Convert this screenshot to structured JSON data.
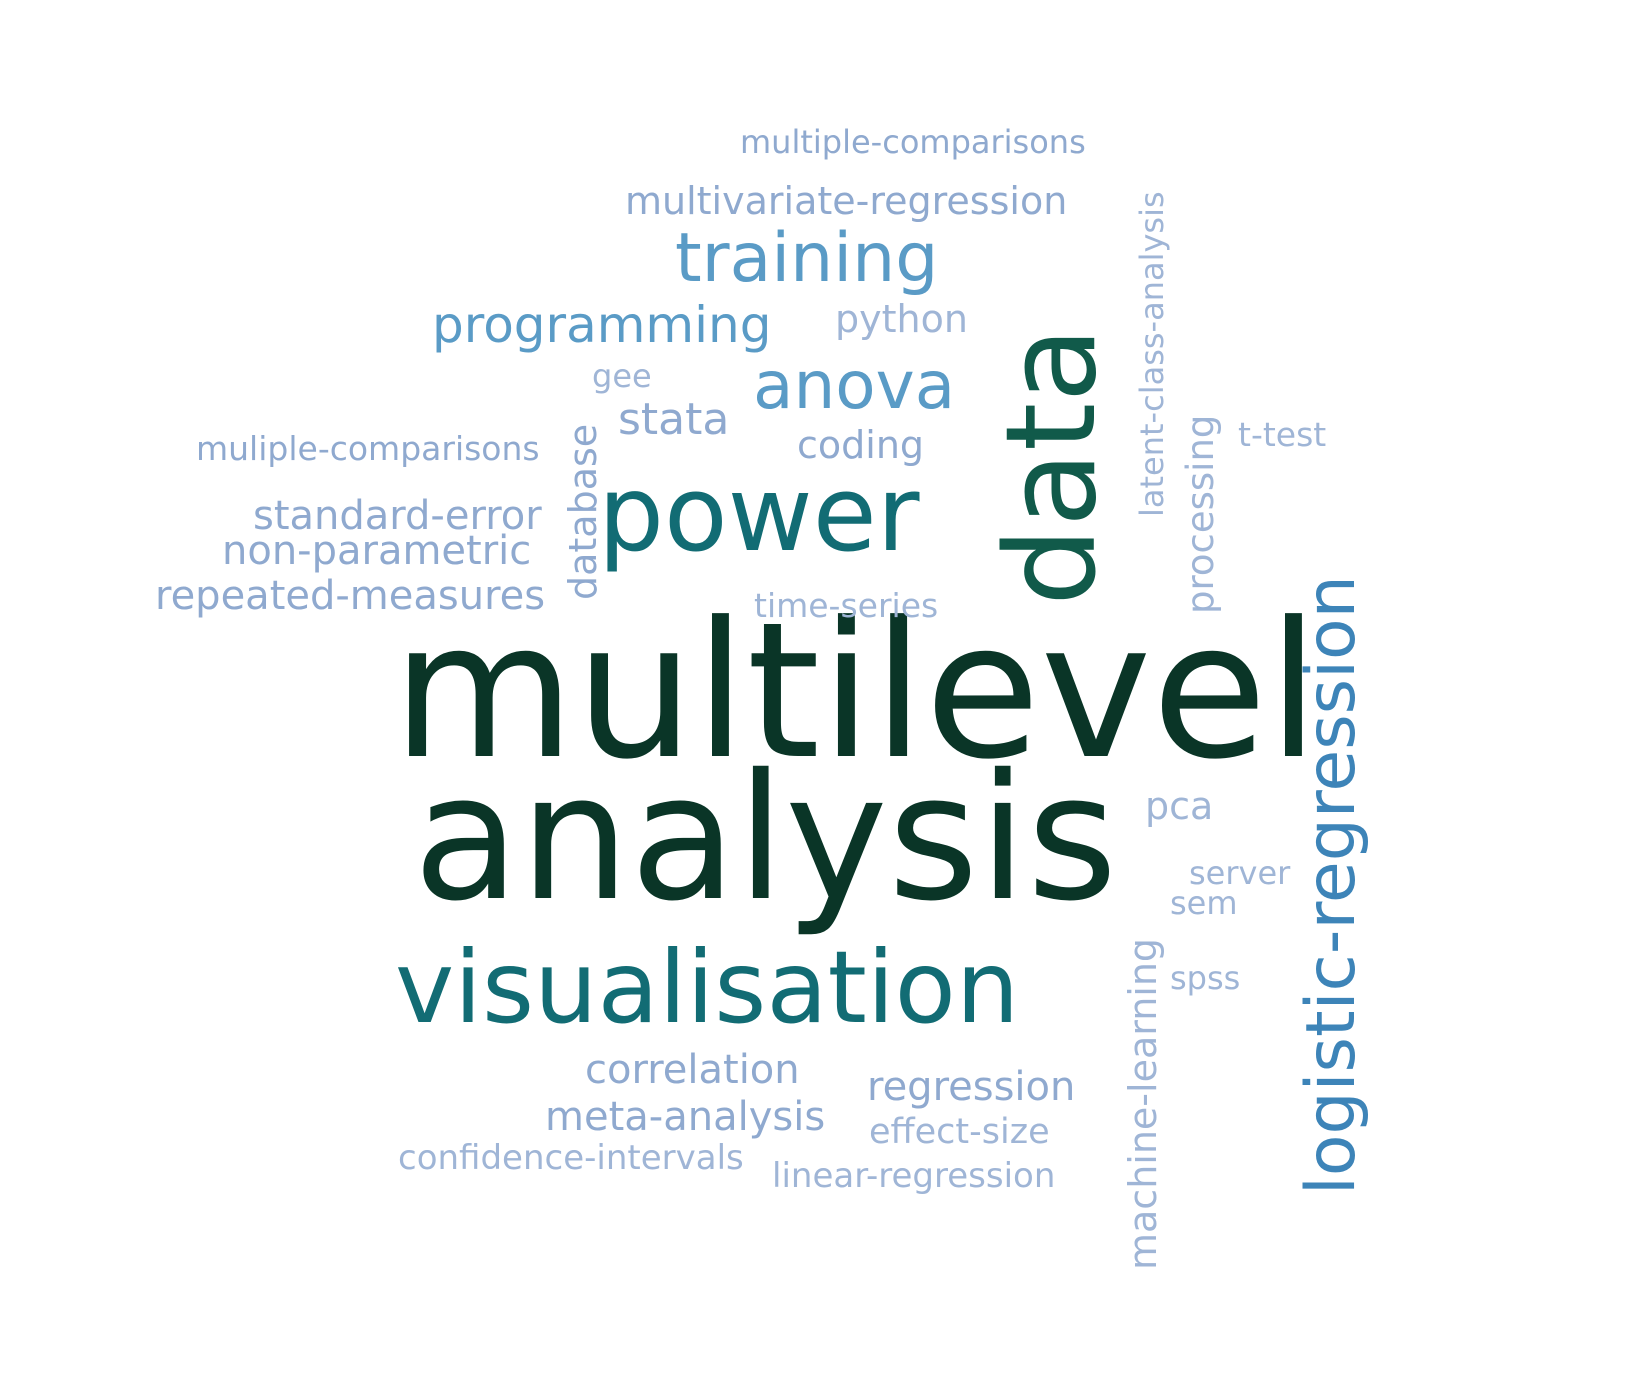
{
  "words": {
    "multilevel": "multilevel",
    "analysis": "analysis",
    "visualisation": "visualisation",
    "power": "power",
    "data": "data",
    "logistic_regression": "logistic-regression",
    "training": "training",
    "anova": "anova",
    "programming": "programming",
    "python": "python",
    "stata": "stata",
    "gee": "gee",
    "coding": "coding",
    "multiple_comparisons": "multiple-comparisons",
    "multivariate_regression": "multivariate-regression",
    "latent_class_analysis": "latent-class-analysis",
    "muliple_comparisons": "muliple-comparisons",
    "standard_error": "standard-error",
    "non_parametric": "non-parametric",
    "repeated_measures": "repeated-measures",
    "database": "database",
    "time_series": "time-series",
    "processing": "processing",
    "t_test": "t-test",
    "pca": "pca",
    "server": "server",
    "sem": "sem",
    "spss": "spss",
    "machine_learning": "machine-learning",
    "correlation": "correlation",
    "regression": "regression",
    "meta_analysis": "meta-analysis",
    "effect_size": "effect-size",
    "confidence_intervals": "confidence-intervals",
    "linear_regression": "linear-regression"
  },
  "colors": {
    "darkest_green": "#0a3527",
    "teal": "#126c74",
    "dark_teal": "#115a4a",
    "blue": "#3d84b8",
    "light_blue": "#5a9bc6",
    "lavender": "#8fa9cf",
    "pale_lavender": "#9fb5d6"
  }
}
